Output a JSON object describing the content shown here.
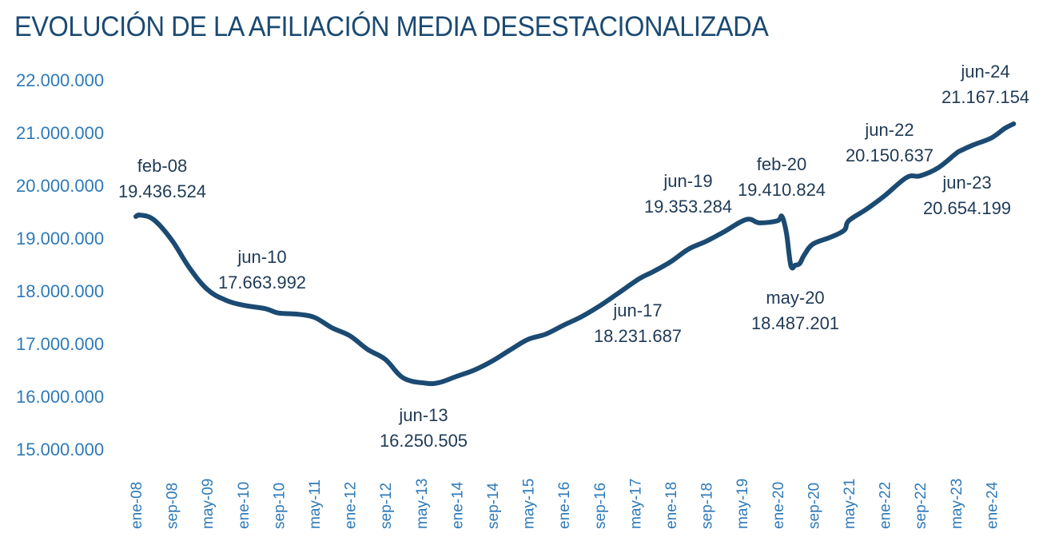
{
  "chart_data": {
    "type": "line",
    "title": "EVOLUCIÓN DE LA AFILIACIÓN MEDIA DESESTACIONALIZADA",
    "xlabel": "",
    "ylabel": "",
    "ylim": [
      15000000,
      22000000
    ],
    "grid": false,
    "line_color": "#1b4a72",
    "y_ticks": [
      {
        "value": 22000000,
        "label": "22.000.000"
      },
      {
        "value": 21000000,
        "label": "21.000.000"
      },
      {
        "value": 20000000,
        "label": "20.000.000"
      },
      {
        "value": 19000000,
        "label": "19.000.000"
      },
      {
        "value": 18000000,
        "label": "18.000.000"
      },
      {
        "value": 17000000,
        "label": "17.000.000"
      },
      {
        "value": 16000000,
        "label": "16.000.000"
      },
      {
        "value": 15000000,
        "label": "15.000.000"
      }
    ],
    "x_ticks": [
      "ene-08",
      "sep-08",
      "may-09",
      "ene-10",
      "sep-10",
      "may-11",
      "ene-12",
      "sep-12",
      "may-13",
      "ene-14",
      "sep-14",
      "may-15",
      "ene-16",
      "sep-16",
      "may-17",
      "ene-18",
      "sep-18",
      "may-19",
      "ene-20",
      "sep-20",
      "may-21",
      "ene-22",
      "sep-22",
      "may-23",
      "ene-24"
    ],
    "points": [
      [
        "ene-08",
        19410000
      ],
      [
        "feb-08",
        19436524
      ],
      [
        "may-08",
        19350000
      ],
      [
        "sep-08",
        18970000
      ],
      [
        "ene-09",
        18440000
      ],
      [
        "may-09",
        18030000
      ],
      [
        "sep-09",
        17830000
      ],
      [
        "ene-10",
        17730000
      ],
      [
        "jun-10",
        17663992
      ],
      [
        "sep-10",
        17580000
      ],
      [
        "ene-11",
        17560000
      ],
      [
        "may-11",
        17500000
      ],
      [
        "sep-11",
        17300000
      ],
      [
        "ene-12",
        17150000
      ],
      [
        "may-12",
        16890000
      ],
      [
        "sep-12",
        16700000
      ],
      [
        "ene-13",
        16350000
      ],
      [
        "jun-13",
        16250505
      ],
      [
        "sep-13",
        16260000
      ],
      [
        "ene-14",
        16380000
      ],
      [
        "may-14",
        16500000
      ],
      [
        "sep-14",
        16670000
      ],
      [
        "ene-15",
        16880000
      ],
      [
        "may-15",
        17080000
      ],
      [
        "sep-15",
        17180000
      ],
      [
        "ene-16",
        17350000
      ],
      [
        "may-16",
        17510000
      ],
      [
        "sep-16",
        17710000
      ],
      [
        "ene-17",
        17940000
      ],
      [
        "jun-17",
        18231687
      ],
      [
        "sep-17",
        18360000
      ],
      [
        "ene-18",
        18550000
      ],
      [
        "may-18",
        18790000
      ],
      [
        "sep-18",
        18940000
      ],
      [
        "ene-19",
        19120000
      ],
      [
        "jun-19",
        19353284
      ],
      [
        "sep-19",
        19290000
      ],
      [
        "ene-20",
        19330000
      ],
      [
        "feb-20",
        19410824
      ],
      [
        "mar-20",
        19100000
      ],
      [
        "abr-20",
        18480000
      ],
      [
        "may-20",
        18487201
      ],
      [
        "jun-20",
        18520000
      ],
      [
        "jul-20",
        18680000
      ],
      [
        "sep-20",
        18890000
      ],
      [
        "ene-21",
        19020000
      ],
      [
        "abr-21",
        19150000
      ],
      [
        "may-21",
        19330000
      ],
      [
        "sep-21",
        19550000
      ],
      [
        "ene-22",
        19800000
      ],
      [
        "jun-22",
        20150637
      ],
      [
        "sep-22",
        20180000
      ],
      [
        "ene-23",
        20330000
      ],
      [
        "may-23",
        20600000
      ],
      [
        "jun-23",
        20654199
      ],
      [
        "sep-23",
        20770000
      ],
      [
        "ene-24",
        20900000
      ],
      [
        "abr-24",
        21080000
      ],
      [
        "jun-24",
        21167154
      ]
    ],
    "annotations": [
      {
        "date": "feb-08",
        "label": "feb-08",
        "value_label": "19.436.524"
      },
      {
        "date": "jun-10",
        "label": "jun-10",
        "value_label": "17.663.992"
      },
      {
        "date": "jun-13",
        "label": "jun-13",
        "value_label": "16.250.505"
      },
      {
        "date": "jun-17",
        "label": "jun-17",
        "value_label": "18.231.687"
      },
      {
        "date": "jun-19",
        "label": "jun-19",
        "value_label": "19.353.284"
      },
      {
        "date": "feb-20",
        "label": "feb-20",
        "value_label": "19.410.824"
      },
      {
        "date": "may-20",
        "label": "may-20",
        "value_label": "18.487.201"
      },
      {
        "date": "jun-22",
        "label": "jun-22",
        "value_label": "20.150.637"
      },
      {
        "date": "jun-23",
        "label": "jun-23",
        "value_label": "20.654.199"
      },
      {
        "date": "jun-24",
        "label": "jun-24",
        "value_label": "21.167.154"
      }
    ]
  }
}
